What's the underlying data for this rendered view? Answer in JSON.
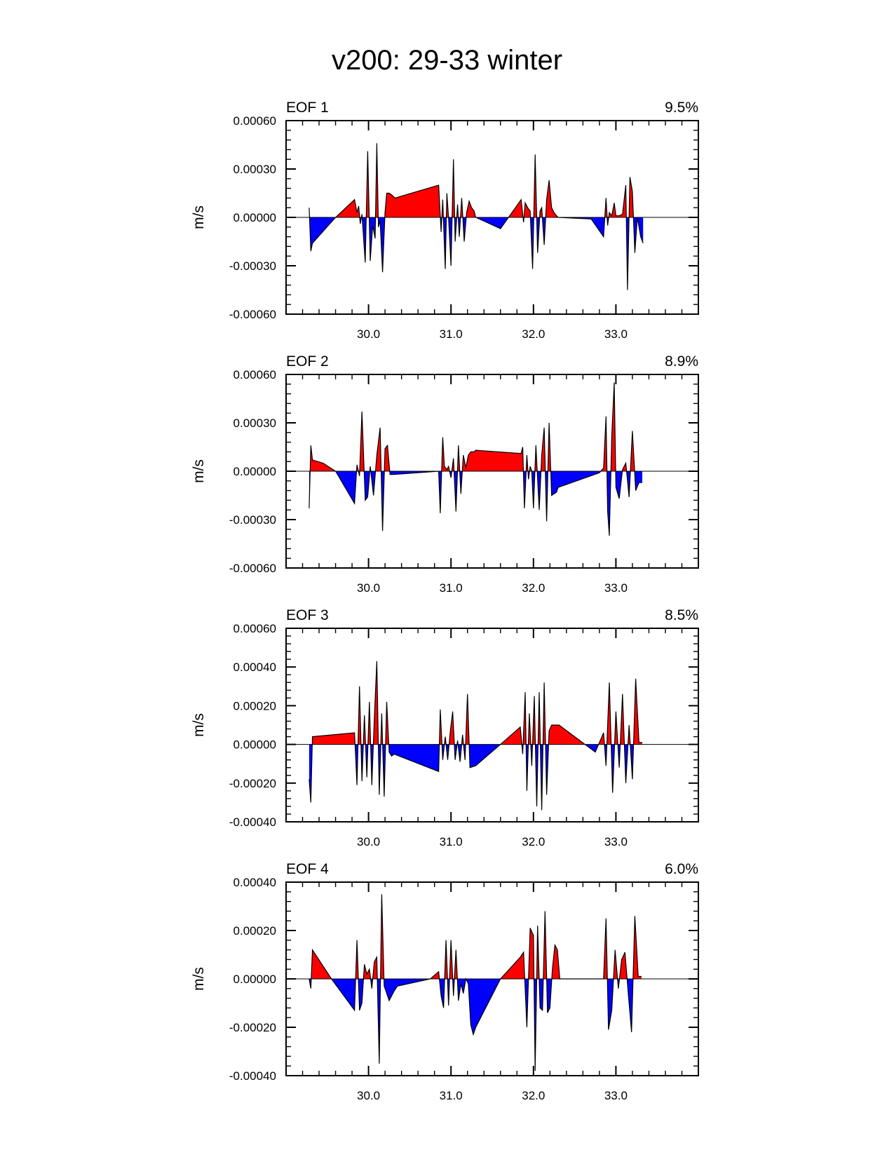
{
  "title": "v200: 29-33 winter",
  "colors": {
    "positive": "#ff0000",
    "negative": "#0000ff",
    "line": "#000000"
  },
  "chart_data": [
    {
      "type": "area",
      "name": "EOF 1",
      "left_label": "EOF 1",
      "right_label": "9.5%",
      "ylabel": "m/s",
      "xlim": [
        29.0,
        34.0
      ],
      "ylim": [
        -0.0006,
        0.0006
      ],
      "yticks": [
        -0.0006,
        -0.0003,
        0.0,
        0.0003,
        0.0006
      ],
      "ytick_labels": [
        "-0.00060",
        "-0.00030",
        "0.00000",
        "0.00030",
        "0.00060"
      ],
      "xticks": [
        30.0,
        31.0,
        32.0,
        33.0
      ],
      "xtick_labels": [
        "30.0",
        "31.0",
        "32.0",
        "33.0"
      ],
      "x": [
        29.28,
        29.3,
        29.32,
        29.6,
        29.83,
        29.86,
        29.88,
        29.9,
        29.92,
        29.96,
        29.99,
        30.02,
        30.05,
        30.08,
        30.1,
        30.12,
        30.14,
        30.17,
        30.2,
        30.22,
        30.25,
        30.28,
        30.32,
        30.85,
        30.88,
        30.9,
        30.93,
        30.95,
        30.97,
        31.0,
        31.03,
        31.05,
        31.08,
        31.1,
        31.13,
        31.16,
        31.19,
        31.22,
        31.25,
        31.28,
        31.3,
        31.6,
        31.85,
        31.88,
        31.9,
        31.93,
        31.96,
        31.99,
        32.02,
        32.05,
        32.08,
        32.1,
        32.13,
        32.16,
        32.19,
        32.22,
        32.25,
        32.28,
        32.3,
        32.7,
        32.85,
        32.88,
        32.9,
        32.92,
        32.95,
        32.98,
        33.0,
        33.04,
        33.08,
        33.12,
        33.14,
        33.17,
        33.2,
        33.23,
        33.26,
        33.3,
        33.33
      ],
      "y": [
        6e-05,
        -0.00021,
        -0.00016,
        0.0,
        0.00011,
        3e-05,
        7e-05,
        -4e-05,
        2e-05,
        -0.00028,
        0.00041,
        -0.00027,
        -5e-05,
        -0.00013,
        0.00046,
        -6e-05,
        -2e-05,
        -0.00034,
        3e-05,
        0.00015,
        0.00015,
        0.00014,
        0.00012,
        0.0002,
        -9e-05,
        0.00011,
        -0.00032,
        0.00015,
        0.0,
        -0.0003,
        0.00036,
        -0.00015,
        8e-05,
        -0.00012,
        0.00012,
        -0.00015,
        3e-05,
        0.0001,
        6e-05,
        4e-05,
        0.0,
        -7e-05,
        0.00011,
        -3e-05,
        9e-05,
        6e-05,
        4e-05,
        -0.00032,
        0.00039,
        -0.00022,
        4e-05,
        6e-05,
        -0.00017,
        0.00011,
        0.00023,
        6e-05,
        3e-05,
        1e-05,
        0.0,
        -1e-05,
        -0.00012,
        0.00012,
        -5e-05,
        3e-05,
        1e-05,
        9e-05,
        1e-05,
        1e-05,
        2e-05,
        0.0002,
        -0.00045,
        0.00025,
        0.00016,
        -0.00022,
        0.0,
        -0.00012,
        -0.00016
      ]
    },
    {
      "type": "area",
      "name": "EOF 2",
      "left_label": "EOF 2",
      "right_label": "8.9%",
      "ylabel": "m/s",
      "xlim": [
        29.0,
        34.0
      ],
      "ylim": [
        -0.0006,
        0.0006
      ],
      "yticks": [
        -0.0006,
        -0.0003,
        0.0,
        0.0003,
        0.0006
      ],
      "ytick_labels": [
        "-0.00060",
        "-0.00030",
        "0.00000",
        "0.00030",
        "0.00060"
      ],
      "xticks": [
        30.0,
        31.0,
        32.0,
        33.0
      ],
      "xtick_labels": [
        "30.0",
        "31.0",
        "32.0",
        "33.0"
      ],
      "x": [
        29.28,
        29.3,
        29.32,
        29.45,
        29.6,
        29.83,
        29.86,
        29.89,
        29.92,
        29.96,
        29.99,
        30.02,
        30.06,
        30.1,
        30.14,
        30.17,
        30.2,
        30.23,
        30.26,
        30.3,
        30.85,
        30.87,
        30.9,
        30.92,
        30.95,
        30.97,
        31.0,
        31.03,
        31.06,
        31.09,
        31.12,
        31.15,
        31.18,
        31.21,
        31.24,
        31.28,
        31.3,
        31.85,
        31.87,
        31.89,
        31.92,
        31.94,
        31.96,
        31.98,
        32.0,
        32.03,
        32.07,
        32.1,
        32.13,
        32.16,
        32.19,
        32.22,
        32.25,
        32.28,
        32.3,
        32.8,
        32.85,
        32.88,
        32.9,
        32.92,
        32.95,
        32.98,
        33.0,
        33.04,
        33.08,
        33.12,
        33.16,
        33.2,
        33.24,
        33.28,
        33.32
      ],
      "y": [
        -0.00023,
        0.00016,
        7e-05,
        5e-05,
        0.0,
        -0.0002,
        4e-05,
        -3e-05,
        0.00037,
        -0.00018,
        -0.00016,
        3e-05,
        -0.00015,
        0.0001,
        0.00027,
        -0.00037,
        0.00014,
        0.00016,
        -2e-05,
        -2e-05,
        -0.0,
        -0.00026,
        0.00021,
        3e-05,
        1e-05,
        3e-05,
        -4e-05,
        8e-05,
        -0.00025,
        0.00016,
        -0.00014,
        0.0001,
        2e-05,
        0.0001,
        0.00012,
        0.00012,
        0.00013,
        0.00011,
        0.00015,
        -0.00023,
        0.0001,
        -5e-05,
        3e-05,
        0.0,
        -0.00023,
        0.00016,
        -0.00024,
        0.0001,
        0.00027,
        -0.00031,
        0.0003,
        -0.00015,
        -0.00014,
        -0.00013,
        -0.0001,
        -1e-05,
        2e-05,
        0.00034,
        -0.00025,
        -0.0004,
        0.00022,
        0.00055,
        -0.0001,
        -0.00017,
        1e-05,
        5e-05,
        -0.00016,
        0.00025,
        -0.00012,
        -7e-05,
        -7e-05
      ]
    },
    {
      "type": "area",
      "name": "EOF 3",
      "left_label": "EOF 3",
      "right_label": "8.5%",
      "ylabel": "m/s",
      "xlim": [
        29.0,
        34.0
      ],
      "ylim": [
        -0.0004,
        0.0006
      ],
      "yticks": [
        -0.0004,
        -0.0002,
        0.0,
        0.0002,
        0.0004,
        0.0006
      ],
      "ytick_labels": [
        "-0.00040",
        "-0.00020",
        "0.00000",
        "0.00020",
        "0.00040",
        "0.00060"
      ],
      "xticks": [
        30.0,
        31.0,
        32.0,
        33.0
      ],
      "xtick_labels": [
        "30.0",
        "31.0",
        "32.0",
        "33.0"
      ],
      "x": [
        29.28,
        29.3,
        29.32,
        29.83,
        29.86,
        29.89,
        29.92,
        29.95,
        29.98,
        30.01,
        30.04,
        30.07,
        30.1,
        30.13,
        30.16,
        30.19,
        30.22,
        30.25,
        30.28,
        30.31,
        30.85,
        30.87,
        30.9,
        30.93,
        30.96,
        30.99,
        31.02,
        31.05,
        31.08,
        31.11,
        31.14,
        31.17,
        31.2,
        31.23,
        31.3,
        31.6,
        31.84,
        31.87,
        31.9,
        31.92,
        31.95,
        31.98,
        32.01,
        32.04,
        32.07,
        32.1,
        32.13,
        32.16,
        32.19,
        32.22,
        32.25,
        32.28,
        32.31,
        32.75,
        32.85,
        32.88,
        32.92,
        32.96,
        33.0,
        33.04,
        33.08,
        33.12,
        33.16,
        33.2,
        33.24,
        33.28,
        33.32
      ],
      "y": [
        -0.00018,
        -0.0003,
        4e-05,
        6e-05,
        -0.00021,
        0.0003,
        -0.00019,
        0.00015,
        -0.00017,
        0.00022,
        -0.00021,
        0.00013,
        0.00043,
        -0.00026,
        0.00016,
        -0.00027,
        0.00022,
        -4e-05,
        -6e-05,
        -5e-05,
        -0.00014,
        0.00018,
        -8e-05,
        4e-05,
        -8e-05,
        6e-05,
        0.00017,
        -8e-05,
        2e-05,
        -9e-05,
        5e-05,
        -8e-05,
        0.00026,
        -0.00012,
        -0.00011,
        0.0,
        9e-05,
        -5e-05,
        0.00027,
        -0.00024,
        0.00016,
        -0.00011,
        0.00025,
        -0.00032,
        0.00027,
        -0.00034,
        0.00032,
        -0.00026,
        7e-05,
        0.0001,
        0.0001,
        0.0001,
        0.0001,
        -4e-05,
        6e-05,
        -0.00011,
        0.00032,
        -0.00025,
        0.00017,
        -0.00012,
        0.00026,
        -0.0002,
        0.0001,
        -0.00018,
        0.00034,
        1e-05,
        1e-05
      ]
    },
    {
      "type": "area",
      "name": "EOF 4",
      "left_label": "EOF 4",
      "right_label": "6.0%",
      "ylabel": "m/s",
      "xlim": [
        29.0,
        34.0
      ],
      "ylim": [
        -0.0004,
        0.0004
      ],
      "yticks": [
        -0.0004,
        -0.0002,
        0.0,
        0.0002,
        0.0004
      ],
      "ytick_labels": [
        "-0.00040",
        "-0.00020",
        "0.00000",
        "0.00020",
        "0.00040"
      ],
      "xticks": [
        30.0,
        31.0,
        32.0,
        33.0
      ],
      "xtick_labels": [
        "30.0",
        "31.0",
        "32.0",
        "33.0"
      ],
      "x": [
        29.28,
        29.3,
        29.32,
        29.55,
        29.83,
        29.86,
        29.89,
        29.92,
        29.95,
        29.98,
        30.01,
        30.04,
        30.07,
        30.1,
        30.13,
        30.16,
        30.19,
        30.22,
        30.25,
        30.28,
        30.31,
        30.35,
        30.75,
        30.85,
        30.88,
        30.91,
        30.94,
        30.97,
        31.0,
        31.03,
        31.06,
        31.09,
        31.12,
        31.15,
        31.18,
        31.21,
        31.24,
        31.27,
        31.3,
        31.6,
        31.84,
        31.88,
        31.92,
        31.96,
        32.0,
        32.02,
        32.05,
        32.08,
        32.11,
        32.14,
        32.17,
        32.2,
        32.23,
        32.26,
        32.29,
        32.32,
        32.85,
        32.88,
        32.91,
        32.95,
        32.99,
        33.03,
        33.07,
        33.11,
        33.15,
        33.19,
        33.23,
        33.27,
        33.31
      ],
      "y": [
        0.0,
        -4e-05,
        0.00012,
        0.0,
        -0.00013,
        0.00016,
        -0.00013,
        -0.0001,
        6e-05,
        2e-05,
        4e-05,
        -4e-05,
        7e-05,
        9e-05,
        -0.00035,
        0.00035,
        -3e-05,
        -6e-05,
        -9e-05,
        -7e-05,
        -5e-05,
        -3e-05,
        0.0,
        3e-05,
        -7e-05,
        -0.00012,
        0.00016,
        -0.00011,
        0.00016,
        -7e-05,
        0.00012,
        -9e-05,
        -2e-05,
        -6e-05,
        0.0,
        -2e-05,
        -0.00019,
        -0.00023,
        -0.0002,
        0.0,
        9e-05,
        0.00011,
        -0.0002,
        0.00021,
        0.00018,
        -0.00038,
        0.00022,
        -0.00012,
        -0.00013,
        0.00028,
        -0.00014,
        -0.00012,
        4e-05,
        0.00014,
        0.00012,
        0.0,
        0.0,
        0.00025,
        -0.00021,
        -0.00013,
        0.00012,
        -4e-05,
        8e-05,
        0.00011,
        -6e-05,
        -0.00022,
        0.00026,
        1e-05,
        1e-05
      ]
    }
  ]
}
